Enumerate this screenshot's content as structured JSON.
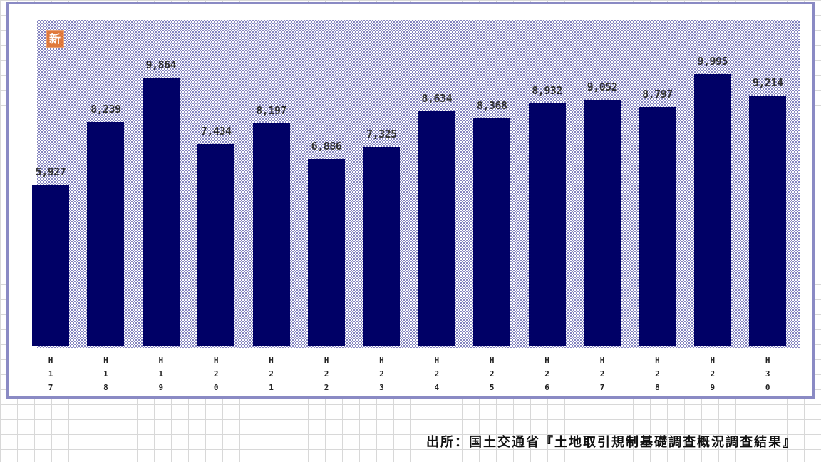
{
  "badge": "新",
  "source": "出所：国土交通省『土地取引規制基礎調査概況調査結果』",
  "colors": {
    "bar": "#000066",
    "frame": "#8a8ac4",
    "badge": "#e07a3c"
  },
  "chart_data": {
    "type": "bar",
    "categories": [
      "H17",
      "H18",
      "H19",
      "H20",
      "H21",
      "H22",
      "H23",
      "H24",
      "H25",
      "H26",
      "H27",
      "H28",
      "H29",
      "H30"
    ],
    "values": [
      5927,
      8239,
      9864,
      7434,
      8197,
      6886,
      7325,
      8634,
      8368,
      8932,
      9052,
      8797,
      9995,
      9214
    ],
    "data_labels": [
      "5,927",
      "8,239",
      "9,864",
      "7,434",
      "8,197",
      "6,886",
      "7,325",
      "8,634",
      "8,368",
      "8,932",
      "9,052",
      "8,797",
      "9,995",
      "9,214"
    ],
    "ylim": [
      0,
      12000
    ],
    "grid": false,
    "legend": "none"
  }
}
